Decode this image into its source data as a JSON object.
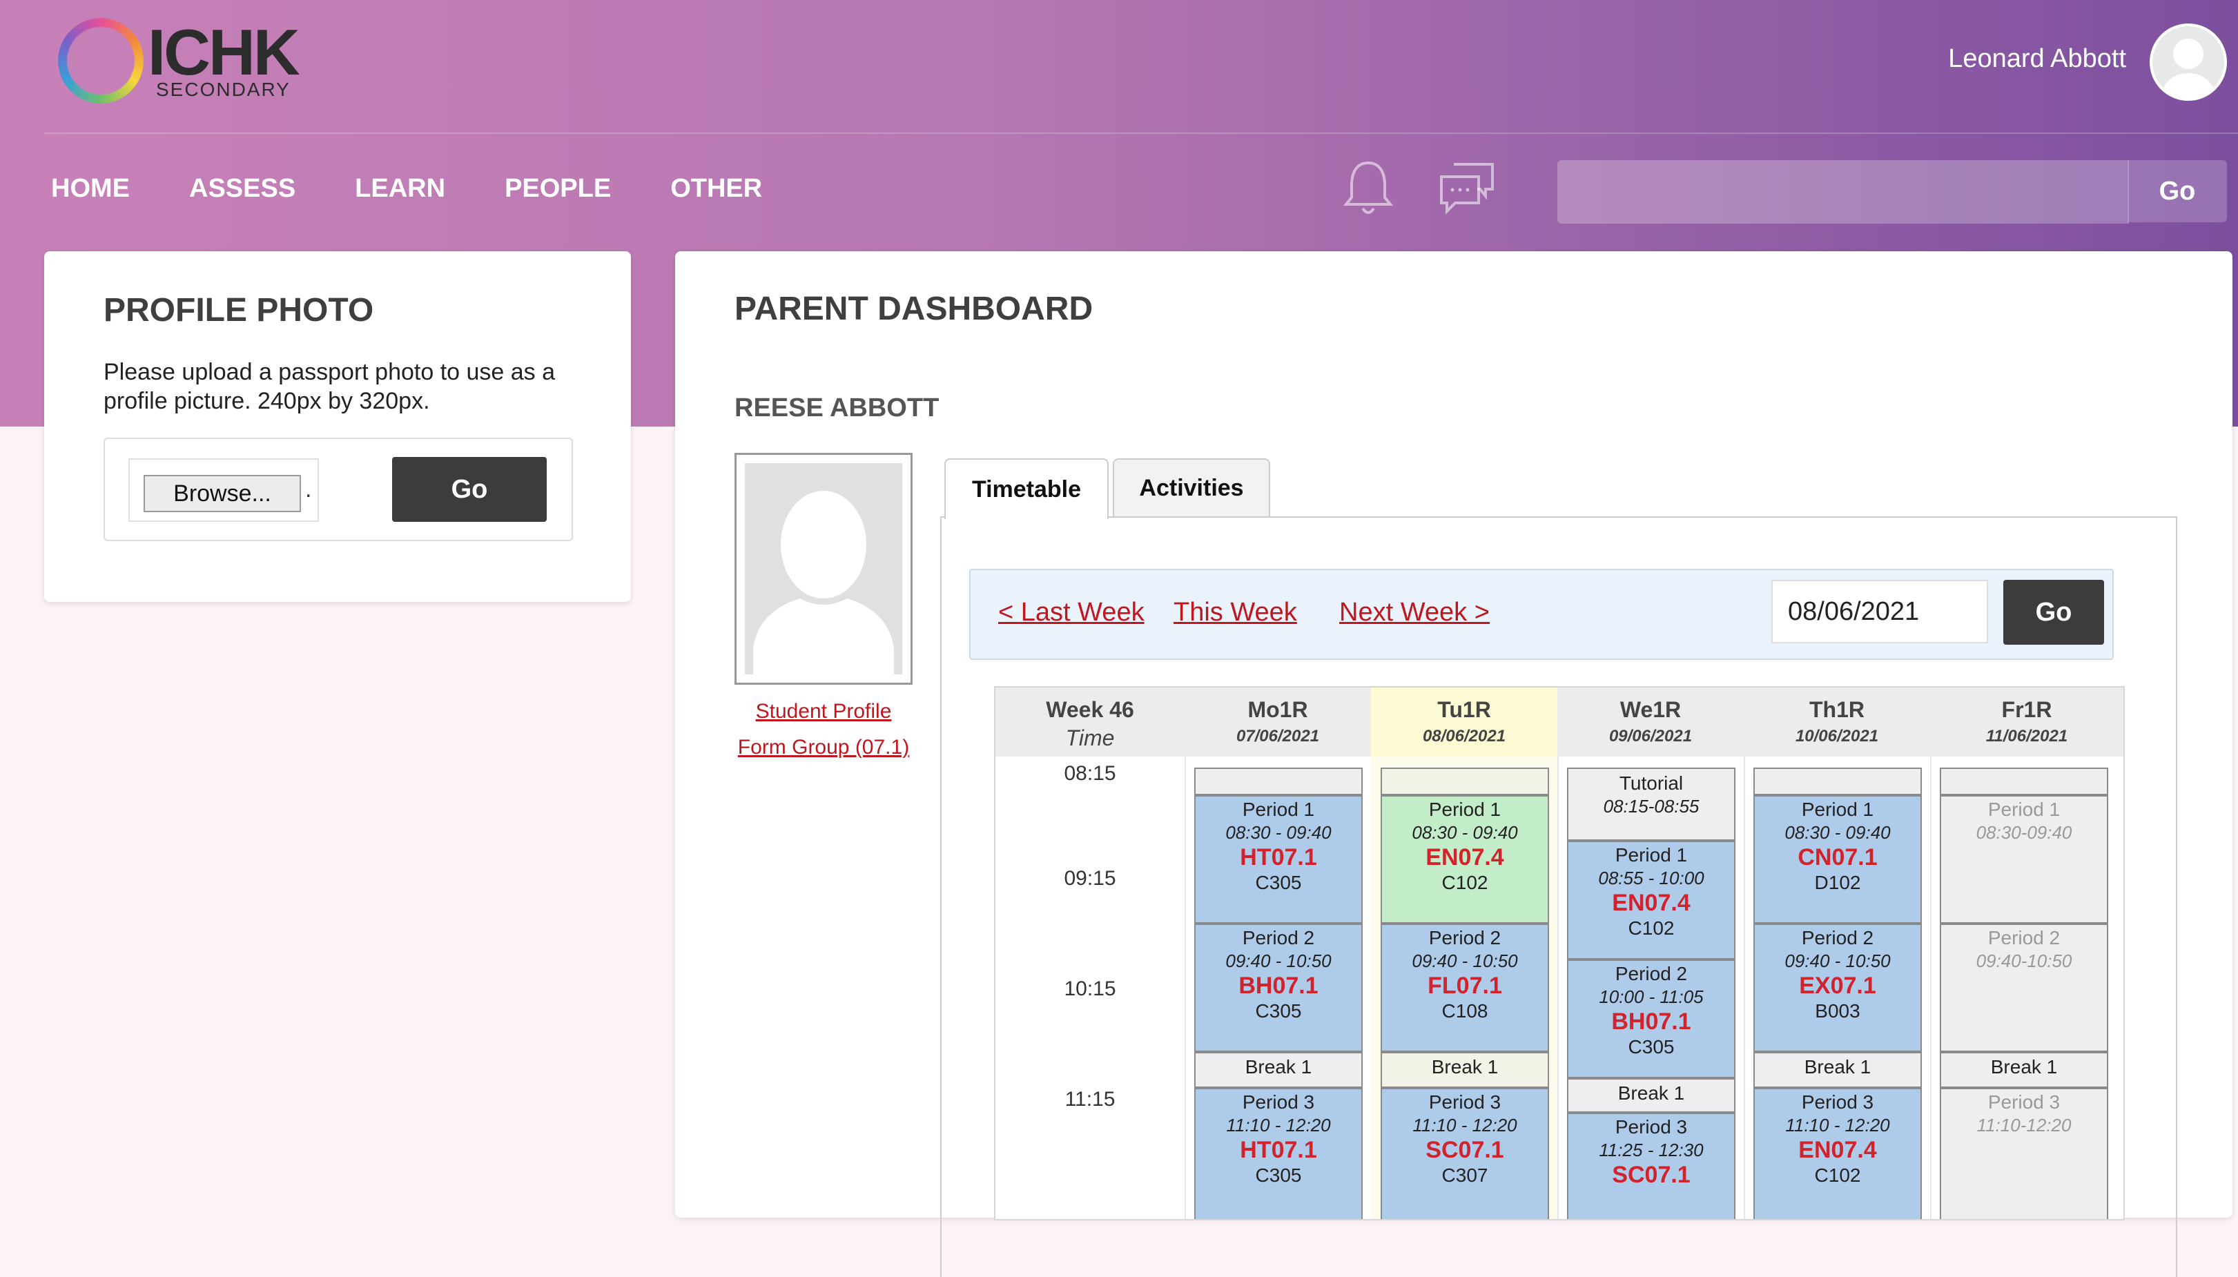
{
  "header": {
    "logo_text": "ICHK",
    "logo_sub": "SECONDARY",
    "user_name": "Leonard Abbott",
    "nav": [
      "HOME",
      "ASSESS",
      "LEARN",
      "PEOPLE",
      "OTHER"
    ],
    "search_placeholder": "",
    "search_go": "Go",
    "icons": [
      "bell-icon",
      "chat-icon",
      "user-avatar"
    ]
  },
  "profile_photo": {
    "title": "PROFILE PHOTO",
    "text": "Please upload a passport photo to use as a profile picture. 240px by 320px.",
    "browse_label": "Browse...",
    "file_suffix": ".",
    "go_label": "Go"
  },
  "dashboard": {
    "title": "PARENT DASHBOARD",
    "student_name": "REESE ABBOTT",
    "student_profile_link": "Student Profile",
    "form_group_link": "Form Group (07.1)",
    "tabs": [
      "Timetable",
      "Activities"
    ],
    "week_nav": {
      "last": "< Last Week",
      "this": "This Week",
      "next": "Next Week >",
      "date": "08/06/2021",
      "go": "Go"
    },
    "timetable": {
      "week_label": "Week 46",
      "time_label": "Time",
      "times": [
        "08:15",
        "09:15",
        "10:15",
        "11:15"
      ],
      "days": [
        {
          "name": "Mo1R",
          "date": "07/06/2021"
        },
        {
          "name": "Tu1R",
          "date": "08/06/2021"
        },
        {
          "name": "We1R",
          "date": "09/06/2021"
        },
        {
          "name": "Th1R",
          "date": "10/06/2021"
        },
        {
          "name": "Fr1R",
          "date": "11/06/2021"
        }
      ],
      "mo": [
        {
          "period": "Period 1",
          "time": "08:30 - 09:40",
          "class": "HT07.1",
          "room": "C305"
        },
        {
          "period": "Period 2",
          "time": "09:40 - 10:50",
          "class": "BH07.1",
          "room": "C305"
        },
        {
          "break": "Break 1"
        },
        {
          "period": "Period 3",
          "time": "11:10 - 12:20",
          "class": "HT07.1",
          "room": "C305"
        }
      ],
      "tu": [
        {
          "period": "Period 1",
          "time": "08:30 - 09:40",
          "class": "EN07.4",
          "room": "C102"
        },
        {
          "period": "Period 2",
          "time": "09:40 - 10:50",
          "class": "FL07.1",
          "room": "C108"
        },
        {
          "break": "Break 1"
        },
        {
          "period": "Period 3",
          "time": "11:10 - 12:20",
          "class": "SC07.1",
          "room": "C307"
        }
      ],
      "we": [
        {
          "period": "Tutorial",
          "time": "08:15-08:55"
        },
        {
          "period": "Period 1",
          "time": "08:55 - 10:00",
          "class": "EN07.4",
          "room": "C102"
        },
        {
          "period": "Period 2",
          "time": "10:00 - 11:05",
          "class": "BH07.1",
          "room": "C305"
        },
        {
          "break": "Break 1"
        },
        {
          "period": "Period 3",
          "time": "11:25 - 12:30",
          "class": "SC07.1"
        }
      ],
      "th": [
        {
          "period": "Period 1",
          "time": "08:30 - 09:40",
          "class": "CN07.1",
          "room": "D102"
        },
        {
          "period": "Period 2",
          "time": "09:40 - 10:50",
          "class": "EX07.1",
          "room": "B003"
        },
        {
          "break": "Break 1"
        },
        {
          "period": "Period 3",
          "time": "11:10 - 12:20",
          "class": "EN07.4",
          "room": "C102"
        }
      ],
      "fr": [
        {
          "period": "Period 1",
          "time": "08:30-09:40"
        },
        {
          "period": "Period 2",
          "time": "09:40-10:50"
        },
        {
          "break": "Break 1"
        },
        {
          "period": "Period 3",
          "time": "11:10-12:20"
        }
      ]
    }
  },
  "colors": {
    "accent_red": "#d0232c",
    "dark_button": "#3c3c3c",
    "lesson_blue": "#afcbea",
    "lesson_green": "#c3ecc8"
  }
}
